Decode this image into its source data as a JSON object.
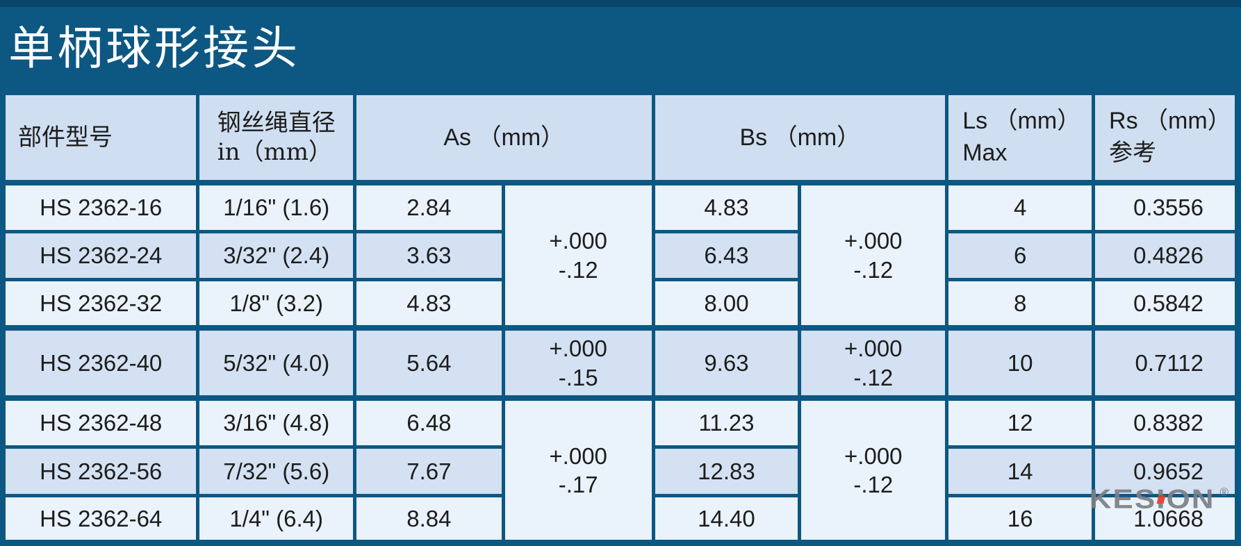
{
  "page": {
    "title": "单柄球形接头"
  },
  "colors": {
    "background": "#0d5783",
    "top_strip": "#07456b",
    "header_cell": "#cfdef1",
    "row_light": "#eaf2fb",
    "row_medium": "#d3e1f3",
    "text": "#1d1d1b",
    "title_text": "#ffffff",
    "logo_gray": "#7c8085",
    "logo_red": "#e03c2d"
  },
  "table": {
    "header": {
      "model": "部件型号",
      "diameter": "钢丝绳直径\nin（mm）",
      "as": "As （mm）",
      "bs": "Bs （mm）",
      "ls": "Ls （mm）\nMax",
      "rs": "Rs （mm）\n参考"
    },
    "group1": {
      "as_tol": "+.000\n-.12",
      "bs_tol": "+.000\n-.12",
      "rows": [
        {
          "model": "HS 2362-16",
          "diameter": "1/16\" (1.6)",
          "as": "2.84",
          "bs": "4.83",
          "ls": "4",
          "rs": "0.3556"
        },
        {
          "model": "HS 2362-24",
          "diameter": "3/32\" (2.4)",
          "as": "3.63",
          "bs": "6.43",
          "ls": "6",
          "rs": "0.4826"
        },
        {
          "model": "HS 2362-32",
          "diameter": "1/8\" (3.2)",
          "as": "4.83",
          "bs": "8.00",
          "ls": "8",
          "rs": "0.5842"
        }
      ]
    },
    "group2": {
      "as_tol": "+.000\n-.15",
      "bs_tol": "+.000\n-.12",
      "rows": [
        {
          "model": "HS 2362-40",
          "diameter": "5/32\" (4.0)",
          "as": "5.64",
          "bs": "9.63",
          "ls": "10",
          "rs": "0.7112"
        }
      ]
    },
    "group3": {
      "as_tol": "+.000\n-.17",
      "bs_tol": "+.000\n-.12",
      "rows": [
        {
          "model": "HS 2362-48",
          "diameter": "3/16\" (4.8)",
          "as": "6.48",
          "bs": "11.23",
          "ls": "12",
          "rs": "0.8382"
        },
        {
          "model": "HS 2362-56",
          "diameter": "7/32\" (5.6)",
          "as": "7.67",
          "bs": "12.83",
          "ls": "14",
          "rs": "0.9652"
        },
        {
          "model": "HS 2362-64",
          "diameter": "1/4\" (6.4)",
          "as": "8.84",
          "bs": "14.40",
          "ls": "16",
          "rs": "1.0668"
        }
      ]
    }
  },
  "logo": {
    "part1": "KES",
    "part2": "I",
    "part3": "ON",
    "registered": "®"
  }
}
